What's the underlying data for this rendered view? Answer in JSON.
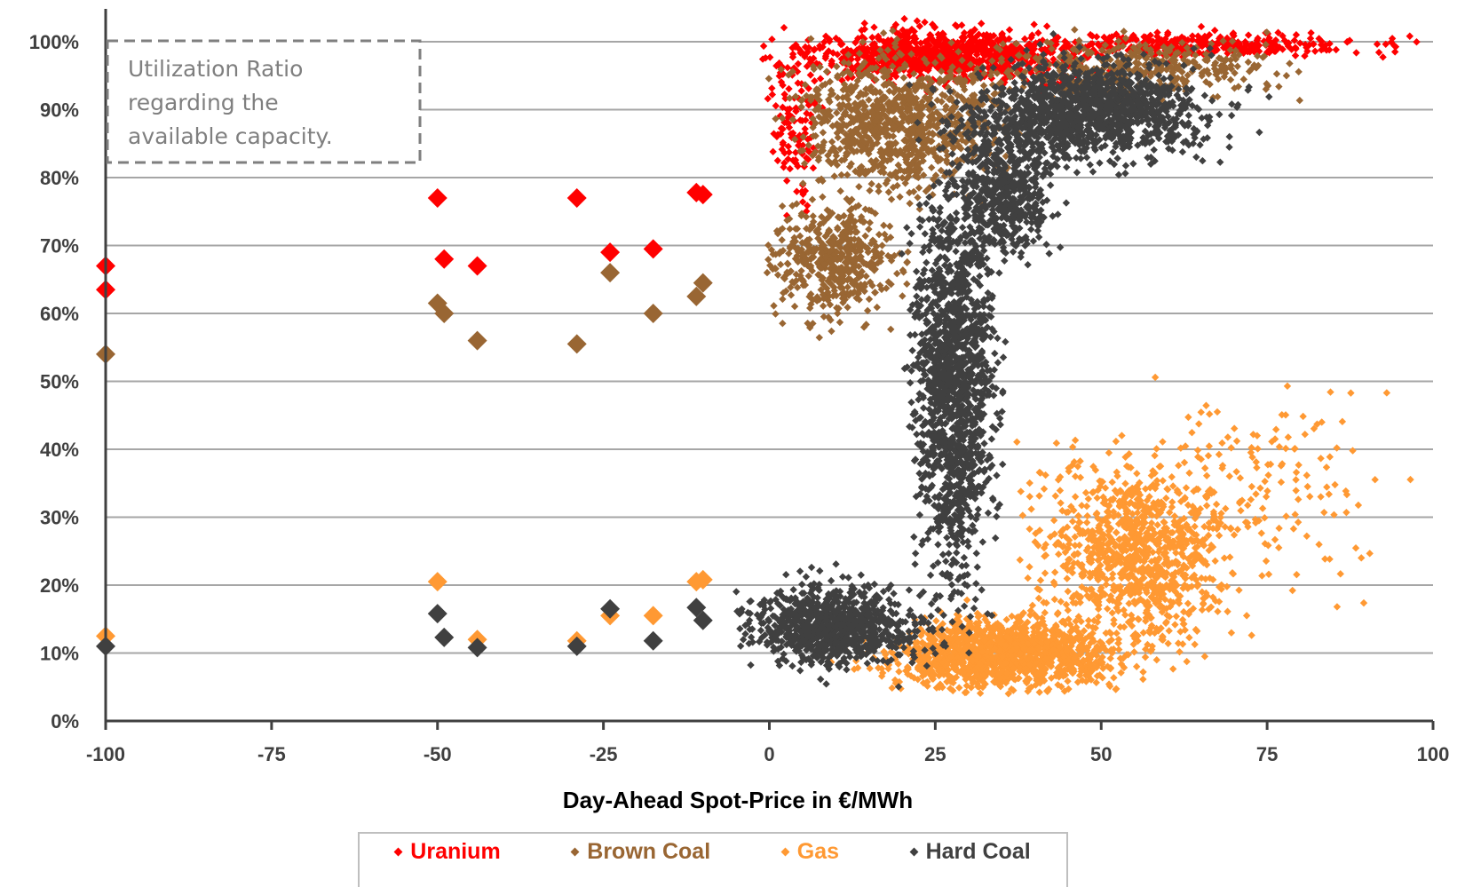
{
  "chart_data": {
    "type": "scatter",
    "title": "",
    "xlabel": "Day-Ahead Spot-Price in €/MWh",
    "ylabel": "",
    "xlim": [
      -100,
      100
    ],
    "ylim": [
      0,
      1
    ],
    "x_ticks": [
      "-100",
      "-75",
      "-50",
      "-25",
      "0",
      "25",
      "50",
      "75",
      "100"
    ],
    "y_ticks": [
      "0%",
      "10%",
      "20%",
      "30%",
      "40%",
      "50%",
      "60%",
      "70%",
      "80%",
      "90%",
      "100%"
    ],
    "grid": "horizontal",
    "legend_position": "bottom",
    "annotation": [
      "Utilization Ratio",
      "regarding the",
      "available capacity."
    ],
    "series": [
      {
        "name": "Uranium",
        "color": "#ff0000",
        "highlight_points": [
          [
            -100,
            0.67
          ],
          [
            -100,
            0.635
          ],
          [
            -50,
            0.77
          ],
          [
            -49,
            0.68
          ],
          [
            -44,
            0.67
          ],
          [
            -29,
            0.77
          ],
          [
            -24,
            0.69
          ],
          [
            -17.5,
            0.695
          ],
          [
            -11,
            0.778
          ],
          [
            -10,
            0.775
          ]
        ],
        "cloud": [
          {
            "cx": 26,
            "cy": 0.98,
            "sx": 14,
            "sy": 0.025,
            "n": 900
          },
          {
            "cx": 65,
            "cy": 0.995,
            "sx": 18,
            "sy": 0.012,
            "n": 350
          },
          {
            "cx": 4,
            "cy": 0.88,
            "sx": 3,
            "sy": 0.07,
            "n": 120
          }
        ]
      },
      {
        "name": "Brown Coal",
        "color": "#996633",
        "highlight_points": [
          [
            -100,
            0.54
          ],
          [
            -50,
            0.615
          ],
          [
            -49,
            0.6
          ],
          [
            -44,
            0.56
          ],
          [
            -29,
            0.555
          ],
          [
            -24,
            0.66
          ],
          [
            -17.5,
            0.6
          ],
          [
            -11,
            0.625
          ],
          [
            -10,
            0.645
          ]
        ],
        "cloud": [
          {
            "cx": 20,
            "cy": 0.88,
            "sx": 10,
            "sy": 0.07,
            "n": 900
          },
          {
            "cx": 10,
            "cy": 0.68,
            "sx": 6,
            "sy": 0.06,
            "n": 500
          },
          {
            "cx": 55,
            "cy": 0.96,
            "sx": 15,
            "sy": 0.03,
            "n": 400
          }
        ]
      },
      {
        "name": "Gas",
        "color": "#ff9933",
        "highlight_points": [
          [
            -100,
            0.125
          ],
          [
            -50,
            0.205
          ],
          [
            -44,
            0.12
          ],
          [
            -29,
            0.118
          ],
          [
            -24,
            0.155
          ],
          [
            -17.5,
            0.155
          ],
          [
            -11,
            0.205
          ],
          [
            -10,
            0.208
          ]
        ],
        "cloud": [
          {
            "cx": 35,
            "cy": 0.1,
            "sx": 12,
            "sy": 0.035,
            "n": 1300
          },
          {
            "cx": 55,
            "cy": 0.25,
            "sx": 10,
            "sy": 0.09,
            "n": 1000
          },
          {
            "cx": 75,
            "cy": 0.35,
            "sx": 12,
            "sy": 0.1,
            "n": 150
          }
        ]
      },
      {
        "name": "Hard Coal",
        "color": "#404040",
        "highlight_points": [
          [
            -100,
            0.11
          ],
          [
            -50,
            0.158
          ],
          [
            -49,
            0.123
          ],
          [
            -44,
            0.108
          ],
          [
            -29,
            0.11
          ],
          [
            -24,
            0.165
          ],
          [
            -17.5,
            0.118
          ],
          [
            -11,
            0.167
          ],
          [
            -10,
            0.148
          ]
        ],
        "cloud": [
          {
            "cx": 10,
            "cy": 0.14,
            "sx": 9,
            "sy": 0.04,
            "n": 900
          },
          {
            "cx": 28,
            "cy": 0.5,
            "sx": 4,
            "sy": 0.2,
            "n": 1500
          },
          {
            "cx": 48,
            "cy": 0.9,
            "sx": 12,
            "sy": 0.05,
            "n": 1300
          },
          {
            "cx": 35,
            "cy": 0.78,
            "sx": 5,
            "sy": 0.06,
            "n": 500
          }
        ]
      }
    ]
  }
}
